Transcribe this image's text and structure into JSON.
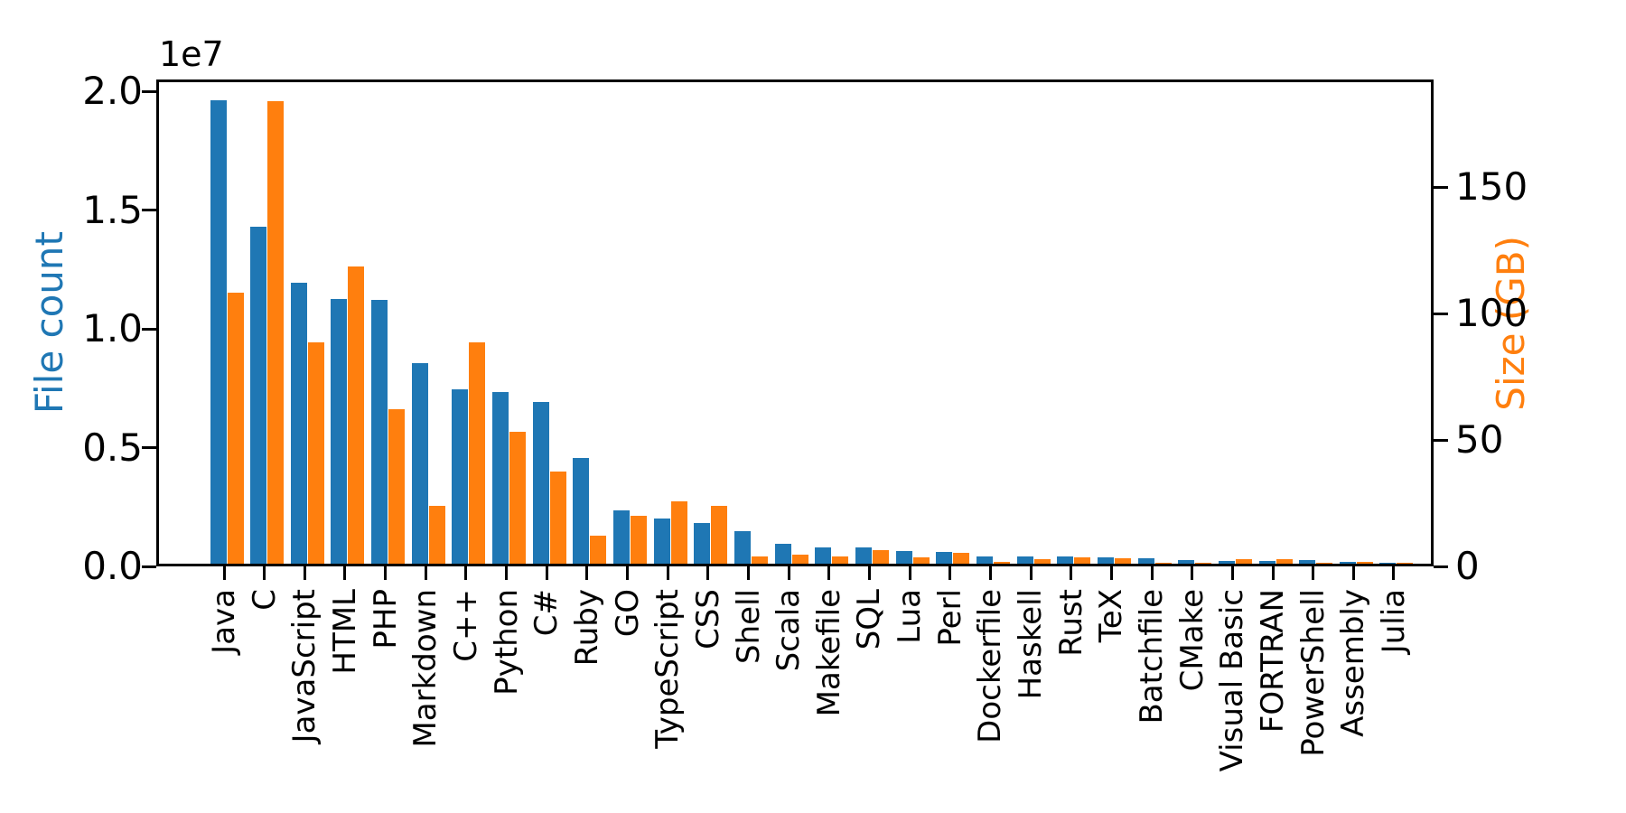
{
  "figure": {
    "background": "#ffffff"
  },
  "chart_data": {
    "type": "bar",
    "title": "",
    "grid": false,
    "legend": "none",
    "categories": [
      "Java",
      "C",
      "JavaScript",
      "HTML",
      "PHP",
      "Markdown",
      "C++",
      "Python",
      "C#",
      "Ruby",
      "GO",
      "TypeScript",
      "CSS",
      "Shell",
      "Scala",
      "Makefile",
      "SQL",
      "Lua",
      "Perl",
      "Dockerfile",
      "Haskell",
      "Rust",
      "TeX",
      "Batchfile",
      "CMake",
      "Visual Basic",
      "FORTRAN",
      "PowerShell",
      "Assembly",
      "Julia"
    ],
    "series": [
      {
        "name": "File count",
        "axis": "left",
        "color": "#1f77b4",
        "values": [
          19500000,
          14170000,
          11830000,
          11150000,
          11100000,
          8450000,
          7350000,
          7220000,
          6820000,
          4470000,
          2260000,
          1920000,
          1730000,
          1390000,
          830000,
          680000,
          670000,
          550000,
          490000,
          310000,
          300000,
          290000,
          250000,
          240000,
          140000,
          135000,
          120000,
          145000,
          95000,
          40000
        ]
      },
      {
        "name": "Size (GB)",
        "axis": "right",
        "color": "#ff7f0e",
        "values": [
          107,
          183,
          87.5,
          117.5,
          61,
          23,
          87.5,
          52,
          36.5,
          11,
          19,
          24.5,
          23,
          3,
          3.7,
          2.8,
          5.3,
          2.5,
          4.4,
          0.7,
          1.8,
          2.4,
          2.2,
          0.4,
          0.4,
          1.9,
          1.7,
          0.4,
          0.8,
          0.2
        ]
      }
    ],
    "left_axis": {
      "label": "File count",
      "color": "#1f77b4",
      "offset_text": "1e7",
      "tick_values": [
        0,
        5000000,
        10000000,
        15000000,
        20000000
      ],
      "tick_labels": [
        "0.0",
        "0.5",
        "1.0",
        "1.5",
        "2.0"
      ],
      "range": [
        0,
        20500000
      ]
    },
    "right_axis": {
      "label": "Size (GB)",
      "color": "#ff7f0e",
      "tick_values": [
        0,
        50,
        100,
        150
      ],
      "tick_labels": [
        "0",
        "50",
        "100",
        "150"
      ],
      "range": [
        0,
        192.5
      ]
    },
    "x_axis": {
      "label": "",
      "tick_label_rotation": 90
    }
  }
}
